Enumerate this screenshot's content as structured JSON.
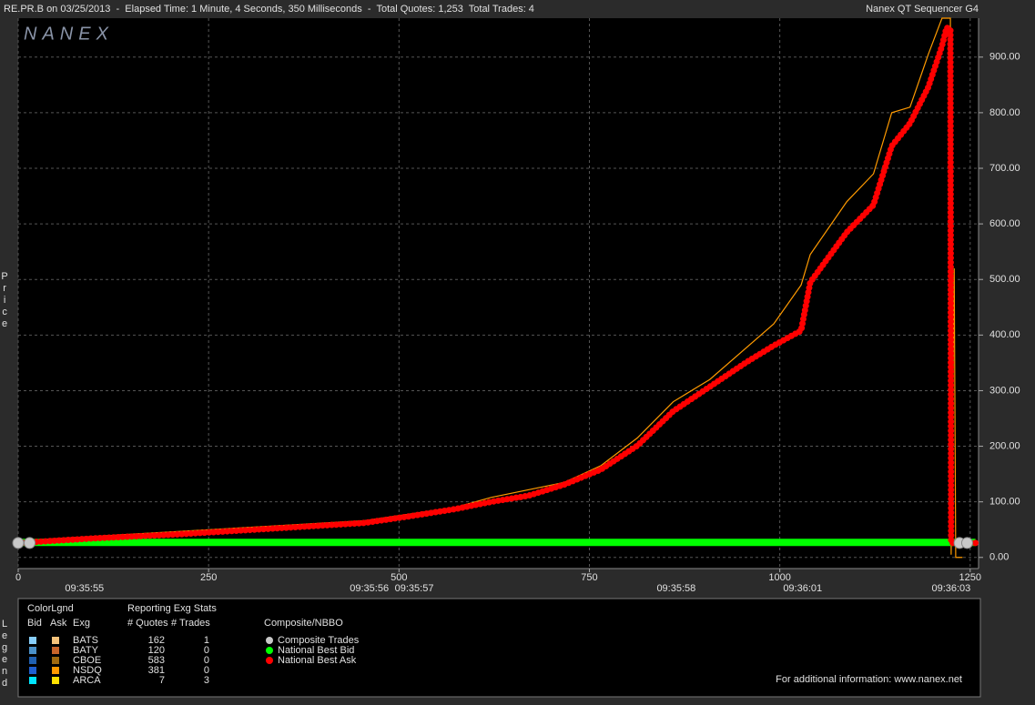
{
  "header": {
    "title": "RE.PR.B on 03/25/2013  -  Elapsed Time: 1 Minute, 4 Seconds, 350 Milliseconds  -  Total Quotes: 1,253  Total Trades: 4",
    "product": "Nanex QT Sequencer G4",
    "watermark": "NANEX"
  },
  "chart_data": {
    "type": "line",
    "y_label": "Price",
    "grid": true,
    "xlim": [
      0,
      1261
    ],
    "ylim": [
      -20,
      970
    ],
    "xticks": [
      0,
      250,
      500,
      750,
      1000,
      1250
    ],
    "yticks": [
      {
        "value": 0,
        "label": "0.00"
      },
      {
        "value": 100,
        "label": "100.00"
      },
      {
        "value": 200,
        "label": "200.00"
      },
      {
        "value": 300,
        "label": "300.00"
      },
      {
        "value": 400,
        "label": "400.00"
      },
      {
        "value": 500,
        "label": "500.00"
      },
      {
        "value": 600,
        "label": "600.00"
      },
      {
        "value": 700,
        "label": "700.00"
      },
      {
        "value": 800,
        "label": "800.00"
      },
      {
        "value": 900,
        "label": "900.00"
      }
    ],
    "time_labels": [
      {
        "value": 87,
        "label": "09:35:55"
      },
      {
        "value": 461,
        "label": "09:35:56"
      },
      {
        "value": 520,
        "label": "09:35:57"
      },
      {
        "value": 864,
        "label": "09:35:58"
      },
      {
        "value": 1030,
        "label": "09:36:01"
      },
      {
        "value": 1225,
        "label": "09:36:03"
      }
    ],
    "series": [
      {
        "name": "Composite Trades",
        "color": "#c8c8c8",
        "style": "markers",
        "x": [
          0,
          15,
          1236,
          1246
        ],
        "values": [
          26,
          26,
          26,
          26
        ]
      },
      {
        "name": "National Best Bid",
        "color": "#00ff00",
        "style": "thick",
        "x": [
          0,
          1257
        ],
        "values": [
          27,
          27
        ]
      },
      {
        "name": "National Best Ask",
        "color": "#ff0000",
        "style": "dotted",
        "x": [
          0,
          96,
          215,
          335,
          454,
          514,
          574,
          621,
          670,
          717,
          765,
          813,
          860,
          908,
          956,
          992,
          1028,
          1040,
          1088,
          1123,
          1147,
          1171,
          1195,
          1213,
          1219,
          1224,
          1225,
          1257
        ],
        "values": [
          26,
          34,
          42,
          52,
          62,
          74,
          87,
          100,
          111,
          131,
          158,
          201,
          263,
          307,
          351,
          381,
          408,
          495,
          585,
          634,
          740,
          781,
          846,
          920,
          953,
          950,
          26,
          26
        ]
      }
    ],
    "exchanges": [
      {
        "name": "BATS",
        "bid_color": "#87cefa",
        "ask_color": "#f5c27a",
        "quotes": 162,
        "trades": 1
      },
      {
        "name": "BATY",
        "bid_color": "#4a90c8",
        "ask_color": "#c8642a",
        "quotes": 120,
        "trades": 0
      },
      {
        "name": "CBOE",
        "bid_color": "#2060b0",
        "ask_color": "#a06a10",
        "quotes": 583,
        "trades": 0
      },
      {
        "name": "NSDQ",
        "bid_color": "#1f5fd0",
        "ask_color": "#ff9a00",
        "quotes": 381,
        "trades": 0,
        "ask_x": [
          0,
          454,
          574,
          621,
          717,
          765,
          813,
          860,
          908,
          992,
          1028,
          1040,
          1088,
          1123,
          1147,
          1171,
          1195,
          1213,
          1224,
          1225,
          1229,
          1231,
          1240
        ],
        "ask_values": [
          30,
          66,
          90,
          108,
          135,
          165,
          215,
          280,
          320,
          420,
          490,
          545,
          640,
          690,
          800,
          810,
          905,
          970,
          970,
          5,
          520,
          0,
          0
        ]
      },
      {
        "name": "ARCA",
        "bid_color": "#00e5ff",
        "ask_color": "#ffe000",
        "quotes": 7,
        "trades": 3
      }
    ]
  },
  "legend": {
    "title": "Legend",
    "color_header": "ColorLgnd",
    "bid": "Bid",
    "ask": "Ask",
    "exg": "Exg",
    "stats_header": "Reporting Exg Stats",
    "quotes": "# Quotes",
    "trades": "# Trades",
    "nbbo_header": "Composite/NBBO"
  },
  "footer": "For additional information: www.nanex.net"
}
